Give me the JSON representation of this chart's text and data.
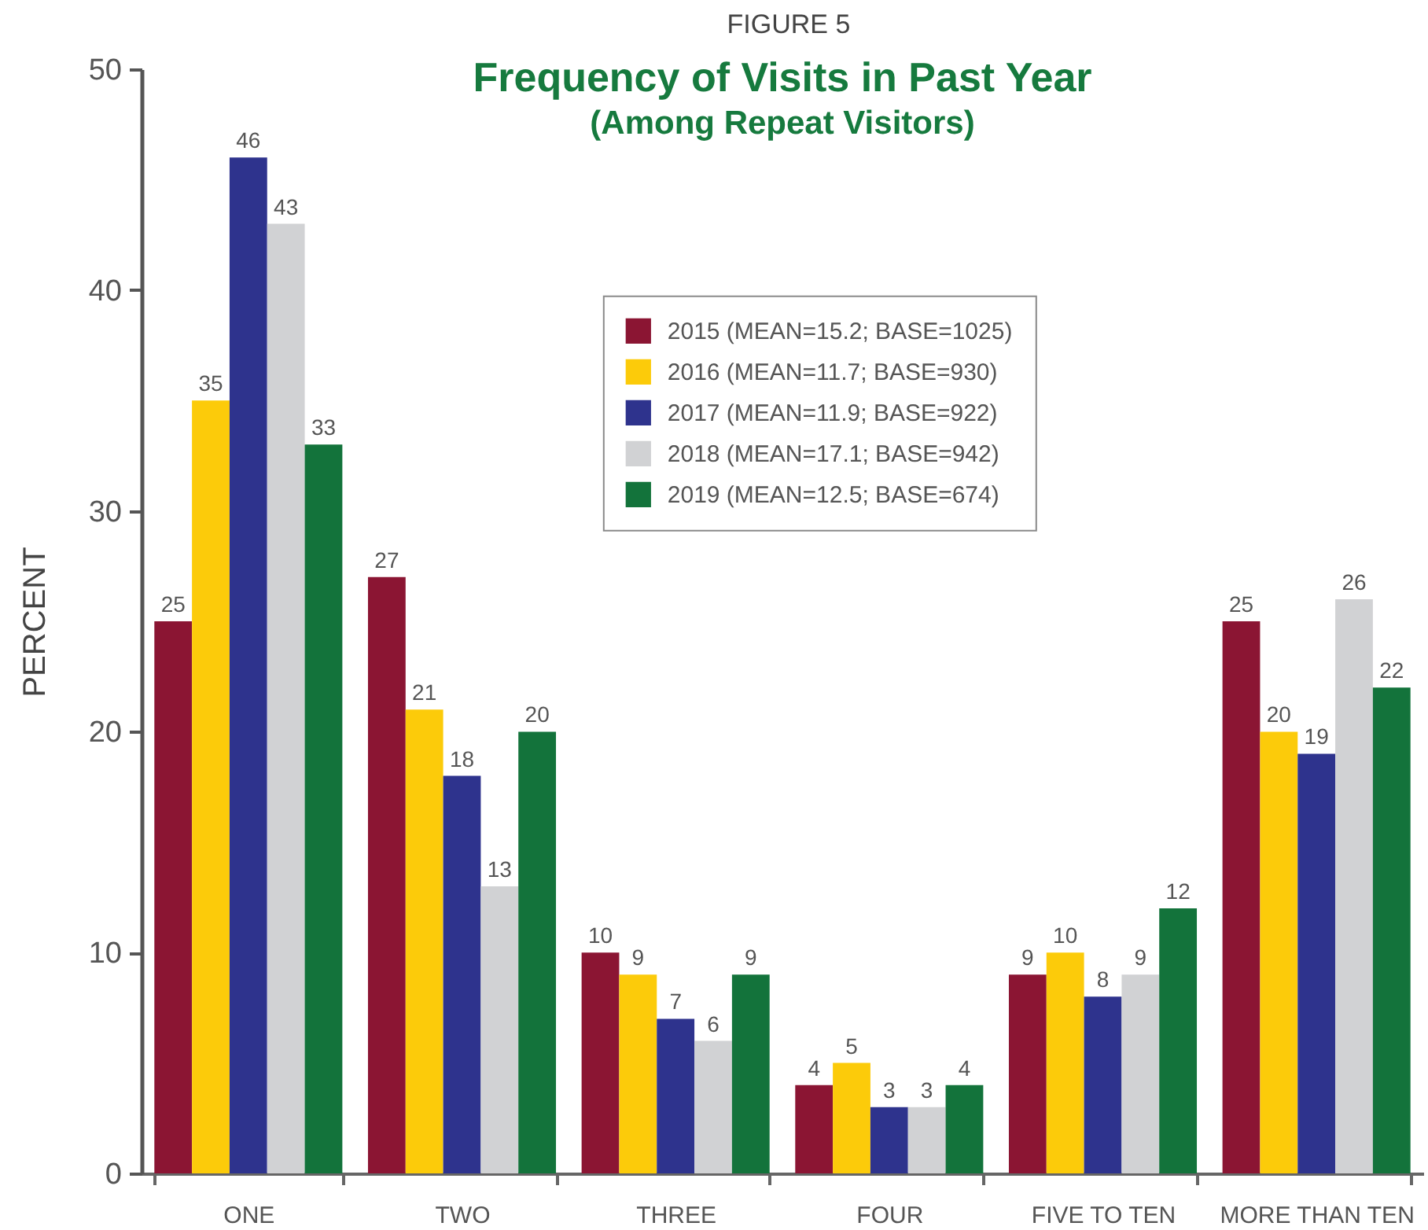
{
  "chart_data": {
    "type": "bar",
    "title": "Frequency of Visits in Past Year",
    "subtitle": "(Among Repeat Visitors)",
    "annotations": [
      "FIGURE 5"
    ],
    "ylabel": "PERCENT",
    "categories": [
      "ONE",
      "TWO",
      "THREE",
      "FOUR",
      "FIVE TO TEN",
      "MORE THAN TEN"
    ],
    "series": [
      {
        "name": "2015 (MEAN=15.2; BASE=1025)",
        "color": "#8b1533",
        "values": [
          25,
          27,
          10,
          4,
          9,
          25
        ]
      },
      {
        "name": "2016 (MEAN=11.7; BASE=930)",
        "color": "#fccb0a",
        "values": [
          35,
          21,
          9,
          5,
          10,
          20
        ]
      },
      {
        "name": "2017 (MEAN=11.9; BASE=922)",
        "color": "#2e338d",
        "values": [
          46,
          18,
          7,
          3,
          8,
          19
        ]
      },
      {
        "name": "2018 (MEAN=17.1; BASE=942)",
        "color": "#d1d2d4",
        "values": [
          43,
          13,
          6,
          3,
          9,
          26
        ]
      },
      {
        "name": "2019 (MEAN=12.5; BASE=674)",
        "color": "#13733b",
        "values": [
          33,
          20,
          9,
          4,
          12,
          22
        ]
      }
    ],
    "ylim": [
      0,
      50
    ],
    "yticks": [
      0,
      10,
      20,
      30,
      40,
      50
    ],
    "legend": "top",
    "data_labels": true
  }
}
